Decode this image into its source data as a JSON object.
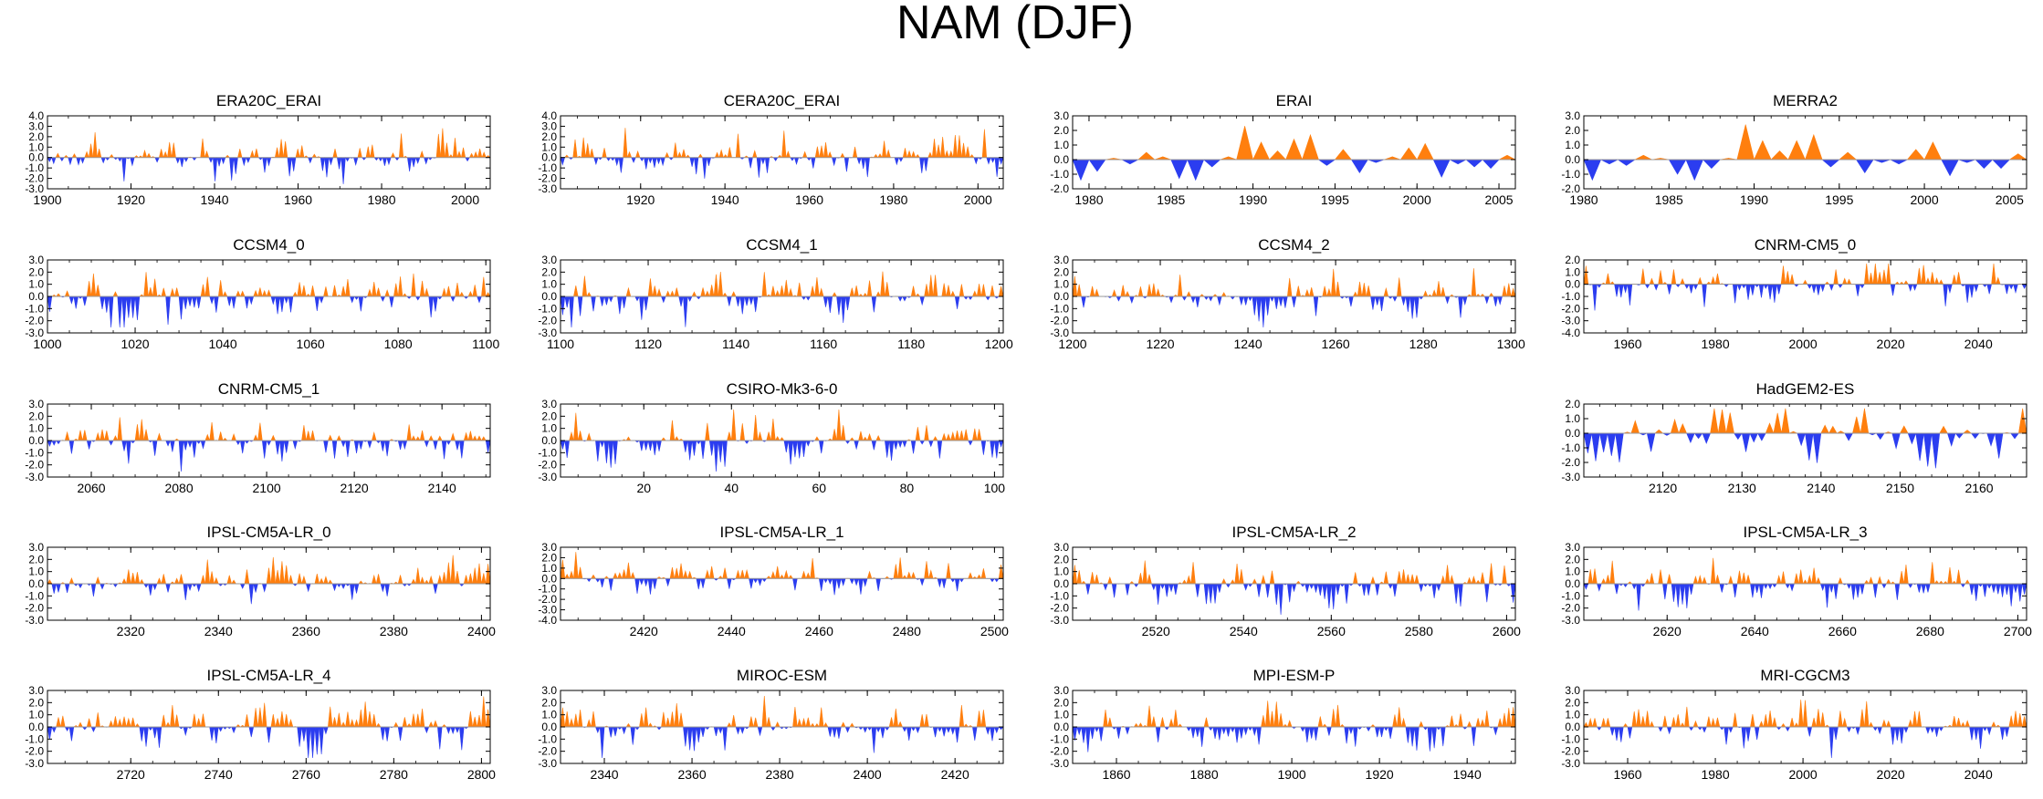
{
  "figure_title": "NAM (DJF)",
  "colors": {
    "positive": "#ff7f0e",
    "negative": "#2b3df0",
    "axis": "#000000",
    "zero_line": "#999999"
  },
  "chart_data": [
    {
      "type": "area",
      "title": "ERA20C_ERAI",
      "xlim": [
        1900,
        2006
      ],
      "ylim": [
        -3,
        4
      ],
      "yticks": [
        "4.0",
        "3.0",
        "2.0",
        "1.0",
        "0.0",
        "-1.0",
        "-2.0",
        "-3.0"
      ],
      "xticks": [
        1900,
        1920,
        1940,
        1960,
        1980,
        2000
      ],
      "n": 107,
      "seed": 11,
      "amp": 1.4
    },
    {
      "type": "area",
      "title": "CERA20C_ERAI",
      "xlim": [
        1901,
        2006
      ],
      "ylim": [
        -3,
        4
      ],
      "yticks": [
        "4.0",
        "3.0",
        "2.0",
        "1.0",
        "0.0",
        "-1.0",
        "-2.0",
        "-3.0"
      ],
      "xticks": [
        1920,
        1940,
        1960,
        1980,
        2000
      ],
      "n": 106,
      "seed": 12,
      "amp": 1.4
    },
    {
      "type": "area",
      "title": "ERAI",
      "xlim": [
        1979,
        2006
      ],
      "ylim": [
        -2,
        3
      ],
      "yticks": [
        "3.0",
        "2.0",
        "1.0",
        "0.0",
        "-1.0",
        "-2.0"
      ],
      "xticks": [
        1980,
        1985,
        1990,
        1995,
        2000,
        2005
      ],
      "x": [
        1979,
        1980,
        1981,
        1982,
        1983,
        1984,
        1985,
        1986,
        1987,
        1988,
        1989,
        1990,
        1991,
        1992,
        1993,
        1994,
        1995,
        1996,
        1997,
        1998,
        1999,
        2000,
        2001,
        2002,
        2003,
        2004,
        2005
      ],
      "values": [
        -1.4,
        -0.8,
        0.1,
        -0.3,
        0.5,
        0.2,
        -1.3,
        -1.4,
        -0.5,
        0.2,
        2.3,
        1.2,
        0.6,
        1.4,
        1.7,
        -0.4,
        0.7,
        -0.9,
        -0.2,
        0.2,
        0.8,
        1.1,
        -1.2,
        -0.3,
        -0.5,
        -0.6,
        0.3
      ]
    },
    {
      "type": "area",
      "title": "MERRA2",
      "xlim": [
        1980,
        2006
      ],
      "ylim": [
        -2,
        3
      ],
      "yticks": [
        "3.0",
        "2.0",
        "1.0",
        "0.0",
        "-1.0",
        "-2.0"
      ],
      "xticks": [
        1980,
        1985,
        1990,
        1995,
        2000,
        2005
      ],
      "x": [
        1980,
        1981,
        1982,
        1983,
        1984,
        1985,
        1986,
        1987,
        1988,
        1989,
        1990,
        1991,
        1992,
        1993,
        1994,
        1995,
        1996,
        1997,
        1998,
        1999,
        2000,
        2001,
        2002,
        2003,
        2004,
        2005
      ],
      "values": [
        -1.4,
        -0.3,
        -0.4,
        0.3,
        0.1,
        -1.0,
        -1.4,
        -0.6,
        0.1,
        2.4,
        1.3,
        0.6,
        1.3,
        1.7,
        -0.5,
        0.5,
        -0.9,
        -0.2,
        -0.3,
        0.7,
        1.2,
        -1.1,
        -0.2,
        -0.6,
        -0.6,
        0.4
      ]
    },
    {
      "type": "area",
      "title": "CCSM4_0",
      "xlim": [
        1000,
        1101
      ],
      "ylim": [
        -3,
        3
      ],
      "yticks": [
        "3.0",
        "2.0",
        "1.0",
        "0.0",
        "-1.0",
        "-2.0",
        "-3.0"
      ],
      "xticks": [
        1000,
        1020,
        1040,
        1060,
        1080,
        1100
      ],
      "n": 101,
      "seed": 21,
      "amp": 1.2
    },
    {
      "type": "area",
      "title": "CCSM4_1",
      "xlim": [
        1100,
        1201
      ],
      "ylim": [
        -3,
        3
      ],
      "yticks": [
        "3.0",
        "2.0",
        "1.0",
        "0.0",
        "-1.0",
        "-2.0",
        "-3.0"
      ],
      "xticks": [
        1100,
        1120,
        1140,
        1160,
        1180,
        1200
      ],
      "n": 101,
      "seed": 22,
      "amp": 1.2
    },
    {
      "type": "area",
      "title": "CCSM4_2",
      "xlim": [
        1200,
        1301
      ],
      "ylim": [
        -3,
        3
      ],
      "yticks": [
        "3.0",
        "2.0",
        "1.0",
        "0.0",
        "-1.0",
        "-2.0",
        "-3.0"
      ],
      "xticks": [
        1200,
        1220,
        1240,
        1260,
        1280,
        1300
      ],
      "n": 101,
      "seed": 23,
      "amp": 1.2
    },
    {
      "type": "area",
      "title": "CNRM-CM5_0",
      "xlim": [
        1950,
        2051
      ],
      "ylim": [
        -4,
        2
      ],
      "yticks": [
        "2.0",
        "1.0",
        "0.0",
        "-1.0",
        "-2.0",
        "-3.0",
        "-4.0"
      ],
      "xticks": [
        1960,
        1980,
        2000,
        2020,
        2040
      ],
      "n": 101,
      "seed": 24,
      "amp": 1.3
    },
    {
      "type": "area",
      "title": "CNRM-CM5_1",
      "xlim": [
        2050,
        2151
      ],
      "ylim": [
        -3,
        3
      ],
      "yticks": [
        "3.0",
        "2.0",
        "1.0",
        "0.0",
        "-1.0",
        "-2.0",
        "-3.0"
      ],
      "xticks": [
        2060,
        2080,
        2100,
        2120,
        2140
      ],
      "n": 101,
      "seed": 31,
      "amp": 1.2
    },
    {
      "type": "area",
      "title": "CSIRO-Mk3-6-0",
      "xlim": [
        1,
        102
      ],
      "ylim": [
        -3,
        3
      ],
      "yticks": [
        "3.0",
        "2.0",
        "1.0",
        "0.0",
        "-1.0",
        "-2.0",
        "-3.0"
      ],
      "xticks": [
        20,
        40,
        60,
        80,
        100
      ],
      "n": 101,
      "seed": 32,
      "amp": 1.2
    },
    {
      "type": "area",
      "title": "HadGEM2-ES",
      "xlim": [
        2110,
        2166
      ],
      "ylim": [
        -3,
        2
      ],
      "yticks": [
        "2.0",
        "1.0",
        "0.0",
        "-1.0",
        "-2.0",
        "-3.0"
      ],
      "xticks": [
        2120,
        2130,
        2140,
        2150,
        2160
      ],
      "n": 56,
      "seed": 34,
      "amp": 1.3,
      "slot": 11
    },
    {
      "type": "area",
      "title": "IPSL-CM5A-LR_0",
      "xlim": [
        2301,
        2402
      ],
      "ylim": [
        -3,
        3
      ],
      "yticks": [
        "3.0",
        "2.0",
        "1.0",
        "0.0",
        "-1.0",
        "-2.0",
        "-3.0"
      ],
      "xticks": [
        2320,
        2340,
        2360,
        2380,
        2400
      ],
      "n": 101,
      "seed": 41,
      "amp": 1.1,
      "slot": 12
    },
    {
      "type": "area",
      "title": "IPSL-CM5A-LR_1",
      "xlim": [
        2401,
        2502
      ],
      "ylim": [
        -4,
        3
      ],
      "yticks": [
        "3.0",
        "2.0",
        "1.0",
        "0.0",
        "-1.0",
        "-2.0",
        "-3.0",
        "-4.0"
      ],
      "xticks": [
        2420,
        2440,
        2460,
        2480,
        2500
      ],
      "n": 101,
      "seed": 42,
      "amp": 1.2,
      "slot": 13
    },
    {
      "type": "area",
      "title": "IPSL-CM5A-LR_2",
      "xlim": [
        2501,
        2602
      ],
      "ylim": [
        -3,
        3
      ],
      "yticks": [
        "3.0",
        "2.0",
        "1.0",
        "0.0",
        "-1.0",
        "-2.0",
        "-3.0"
      ],
      "xticks": [
        2520,
        2540,
        2560,
        2580,
        2600
      ],
      "n": 101,
      "seed": 43,
      "amp": 1.2,
      "slot": 14
    },
    {
      "type": "area",
      "title": "IPSL-CM5A-LR_3",
      "xlim": [
        2601,
        2702
      ],
      "ylim": [
        -3,
        3
      ],
      "yticks": [
        "3.0",
        "2.0",
        "1.0",
        "0.0",
        "-1.0",
        "-2.0",
        "-3.0"
      ],
      "xticks": [
        2620,
        2640,
        2660,
        2680,
        2700
      ],
      "n": 101,
      "seed": 44,
      "amp": 1.2,
      "slot": 15
    },
    {
      "type": "area",
      "title": "IPSL-CM5A-LR_4",
      "xlim": [
        2701,
        2802
      ],
      "ylim": [
        -3,
        3
      ],
      "yticks": [
        "3.0",
        "2.0",
        "1.0",
        "0.0",
        "-1.0",
        "-2.0",
        "-3.0"
      ],
      "xticks": [
        2720,
        2740,
        2760,
        2780,
        2800
      ],
      "n": 101,
      "seed": 51,
      "amp": 1.2,
      "slot": 16
    },
    {
      "type": "area",
      "title": "MIROC-ESM",
      "xlim": [
        2330,
        2431
      ],
      "ylim": [
        -3,
        3
      ],
      "yticks": [
        "3.0",
        "2.0",
        "1.0",
        "0.0",
        "-1.0",
        "-2.0",
        "-3.0"
      ],
      "xticks": [
        2340,
        2360,
        2380,
        2400,
        2420
      ],
      "n": 101,
      "seed": 52,
      "amp": 1.2,
      "slot": 17
    },
    {
      "type": "area",
      "title": "MPI-ESM-P",
      "xlim": [
        1850,
        1951
      ],
      "ylim": [
        -3,
        3
      ],
      "yticks": [
        "3.0",
        "2.0",
        "1.0",
        "0.0",
        "-1.0",
        "-2.0",
        "-3.0"
      ],
      "xticks": [
        1860,
        1880,
        1900,
        1920,
        1940
      ],
      "n": 101,
      "seed": 53,
      "amp": 1.2,
      "slot": 18
    },
    {
      "type": "area",
      "title": "MRI-CGCM3",
      "xlim": [
        1950,
        2051
      ],
      "ylim": [
        -3,
        3
      ],
      "yticks": [
        "3.0",
        "2.0",
        "1.0",
        "0.0",
        "-1.0",
        "-2.0",
        "-3.0"
      ],
      "xticks": [
        1960,
        1980,
        2000,
        2020,
        2040
      ],
      "n": 101,
      "seed": 54,
      "amp": 1.2,
      "slot": 19
    }
  ]
}
